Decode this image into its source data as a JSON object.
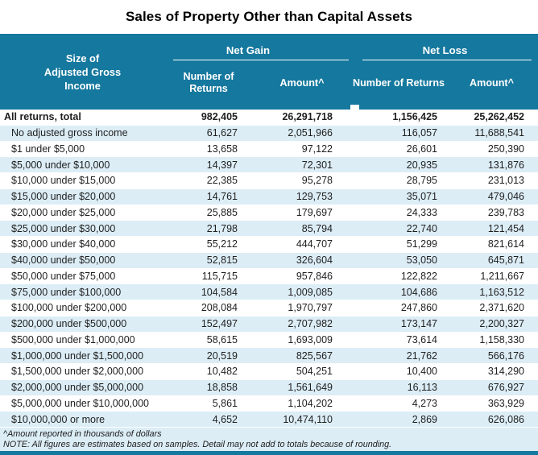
{
  "title": "Sales of Property Other than Capital Assets",
  "colors": {
    "teal": "#15789E",
    "row_alt": "#DCEDF6",
    "text": "#1F1F1F"
  },
  "header": {
    "stub_lines": [
      "Size of",
      "Adjusted Gross",
      "Income"
    ],
    "groups": [
      {
        "label": "Net Gain"
      },
      {
        "label": "Net Loss"
      }
    ],
    "subcolumns": [
      "Number of Returns",
      "Amount^"
    ]
  },
  "footnotes": [
    "^Amount reported in thousands of dollars",
    "NOTE: All figures are estimates based on samples. Detail may not add to totals because of rounding."
  ],
  "chart_data": {
    "type": "table",
    "title": "Sales of Property Other than Capital Assets",
    "columns": [
      "Size of Adjusted Gross Income",
      "Net Gain - Number of Returns",
      "Net Gain - Amount^",
      "Net Loss - Number of Returns",
      "Net Loss - Amount^"
    ],
    "units_note": "^Amount reported in thousands of dollars",
    "rows": [
      [
        "All returns, total",
        "982,405",
        "26,291,718",
        "1,156,425",
        "25,262,452"
      ],
      [
        "No adjusted gross income",
        "61,627",
        "2,051,966",
        "116,057",
        "11,688,541"
      ],
      [
        "$1 under $5,000",
        "13,658",
        "97,122",
        "26,601",
        "250,390"
      ],
      [
        "$5,000 under $10,000",
        "14,397",
        "72,301",
        "20,935",
        "131,876"
      ],
      [
        "$10,000 under $15,000",
        "22,385",
        "95,278",
        "28,795",
        "231,013"
      ],
      [
        "$15,000 under $20,000",
        "14,761",
        "129,753",
        "35,071",
        "479,046"
      ],
      [
        "$20,000 under $25,000",
        "25,885",
        "179,697",
        "24,333",
        "239,783"
      ],
      [
        "$25,000 under $30,000",
        "21,798",
        "85,794",
        "22,740",
        "121,454"
      ],
      [
        "$30,000 under $40,000",
        "55,212",
        "444,707",
        "51,299",
        "821,614"
      ],
      [
        "$40,000 under $50,000",
        "52,815",
        "326,604",
        "53,050",
        "645,871"
      ],
      [
        "$50,000 under $75,000",
        "115,715",
        "957,846",
        "122,822",
        "1,211,667"
      ],
      [
        "$75,000 under $100,000",
        "104,584",
        "1,009,085",
        "104,686",
        "1,163,512"
      ],
      [
        "$100,000 under $200,000",
        "208,084",
        "1,970,797",
        "247,860",
        "2,371,620"
      ],
      [
        "$200,000 under $500,000",
        "152,497",
        "2,707,982",
        "173,147",
        "2,200,327"
      ],
      [
        "$500,000 under $1,000,000",
        "58,615",
        "1,693,009",
        "73,614",
        "1,158,330"
      ],
      [
        "$1,000,000 under $1,500,000",
        "20,519",
        "825,567",
        "21,762",
        "566,176"
      ],
      [
        "$1,500,000 under $2,000,000",
        "10,482",
        "504,251",
        "10,400",
        "314,290"
      ],
      [
        "$2,000,000 under $5,000,000",
        "18,858",
        "1,561,649",
        "16,113",
        "676,927"
      ],
      [
        "$5,000,000 under $10,000,000",
        "5,861",
        "1,104,202",
        "4,273",
        "363,929"
      ],
      [
        "$10,000,000 or more",
        "4,652",
        "10,474,110",
        "2,869",
        "626,086"
      ]
    ]
  }
}
